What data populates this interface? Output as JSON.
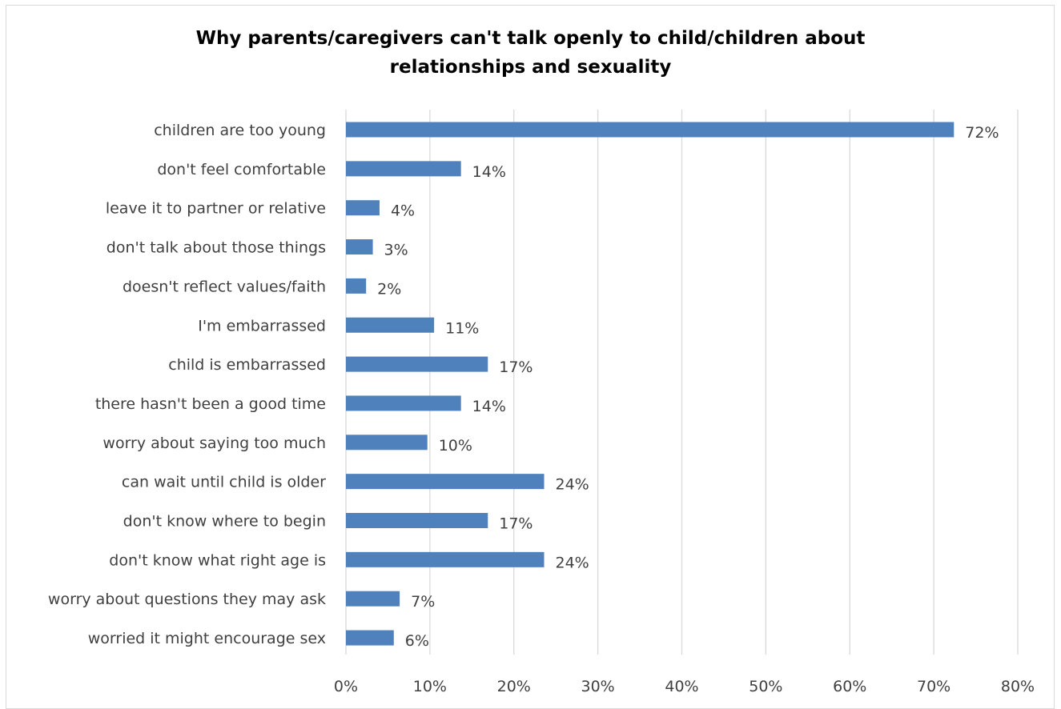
{
  "chart_data": {
    "type": "bar",
    "orientation": "horizontal",
    "title": "Why parents/caregivers can't talk openly to child/children about relationships and sexuality",
    "title_lines": [
      "Why parents/caregivers can't talk openly to child/children about",
      "relationships and sexuality"
    ],
    "categories": [
      "children are too young",
      "don't feel comfortable",
      "leave it to partner or relative",
      "don't talk about those things",
      "doesn't reflect values/faith",
      "I'm embarrassed",
      "child is embarrassed",
      "there hasn't been a good time",
      "worry about saying too much",
      "can wait until child is older",
      "don't know where to begin",
      "don't know what right age is",
      "worry about questions they may ask",
      "worried it might encourage sex"
    ],
    "values": [
      72,
      14,
      4,
      3,
      2,
      11,
      17,
      14,
      10,
      24,
      17,
      24,
      7,
      6
    ],
    "precise_values": [
      72.4,
      13.7,
      4.0,
      3.2,
      2.4,
      10.5,
      16.9,
      13.7,
      9.7,
      23.6,
      16.9,
      23.6,
      6.4,
      5.7
    ],
    "data_labels": [
      "72%",
      "14%",
      "4%",
      "3%",
      "2%",
      "11%",
      "17%",
      "14%",
      "10%",
      "24%",
      "17%",
      "24%",
      "7%",
      "6%"
    ],
    "xlim": [
      0,
      80
    ],
    "x_ticks": [
      "0%",
      "10%",
      "20%",
      "30%",
      "40%",
      "50%",
      "60%",
      "70%",
      "80%"
    ],
    "xlabel": "",
    "ylabel": "",
    "grid": "vertical",
    "legend": "none",
    "bar_color": "#4f81bd",
    "grid_color": "#d9d9d9",
    "text_color": "#404040"
  }
}
